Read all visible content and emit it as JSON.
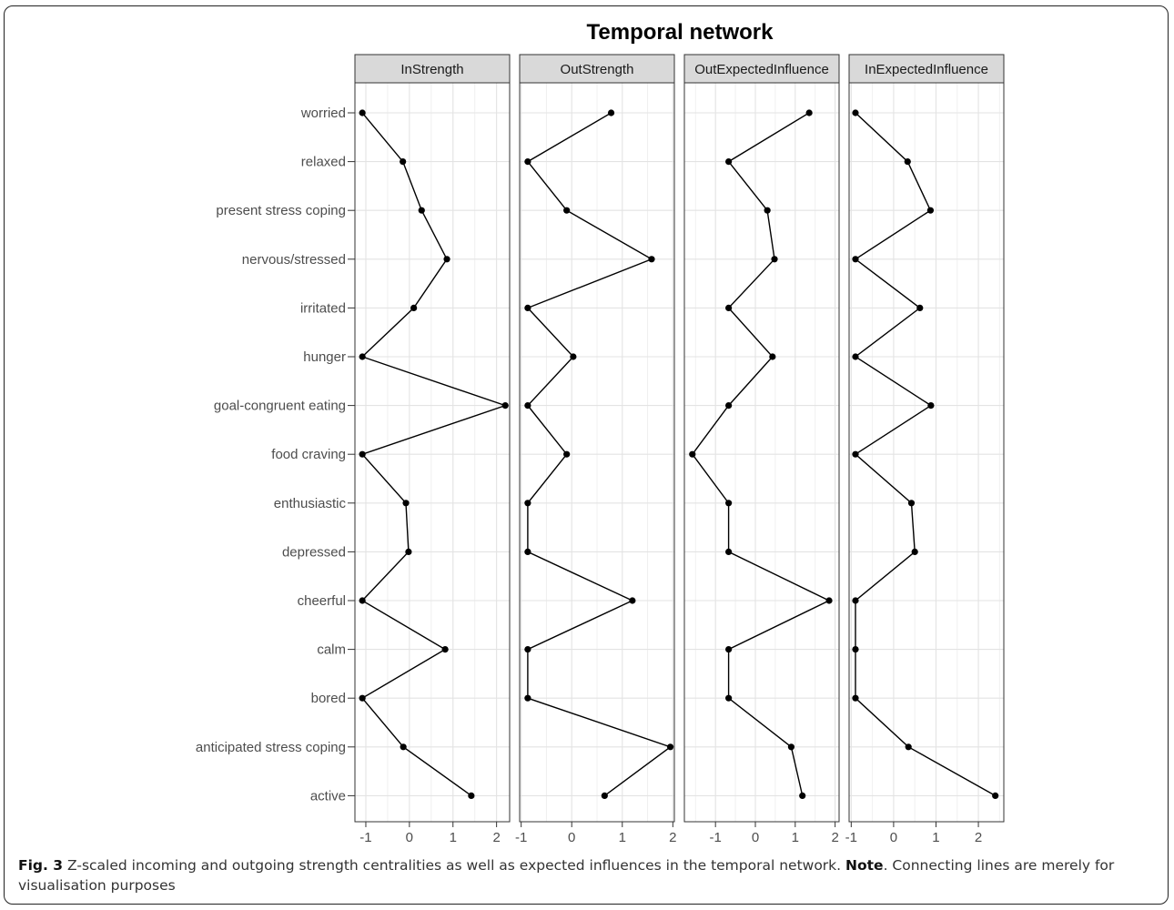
{
  "chart_data": {
    "type": "line",
    "title": "Temporal network",
    "categories": [
      "worried",
      "relaxed",
      "present stress coping",
      "nervous/stressed",
      "irritated",
      "hunger",
      "goal-congruent eating",
      "food craving",
      "enthusiastic",
      "depressed",
      "cheerful",
      "calm",
      "bored",
      "anticipated stress coping",
      "active"
    ],
    "panels": [
      {
        "name": "InStrength",
        "xlim": [
          -1.25,
          2.3
        ],
        "xticks": [
          -1,
          0,
          1,
          2
        ],
        "values": [
          -1.08,
          -0.15,
          0.28,
          0.86,
          0.1,
          -1.08,
          2.2,
          -1.08,
          -0.08,
          -0.02,
          -1.08,
          0.82,
          -1.08,
          -0.14,
          1.42
        ]
      },
      {
        "name": "OutStrength",
        "xlim": [
          -1.03,
          2.03
        ],
        "xticks": [
          -1,
          0,
          1,
          2
        ],
        "values": [
          0.78,
          -0.87,
          -0.1,
          1.58,
          -0.87,
          0.03,
          -0.87,
          -0.1,
          -0.87,
          -0.87,
          1.2,
          -0.87,
          -0.87,
          1.95,
          0.65
        ]
      },
      {
        "name": "OutExpectedInfluence",
        "xlim": [
          -1.78,
          2.1
        ],
        "xticks": [
          -1,
          0,
          1,
          2
        ],
        "values": [
          1.35,
          -0.67,
          0.3,
          0.48,
          -0.67,
          0.43,
          -0.67,
          -1.58,
          -0.67,
          -0.67,
          1.85,
          -0.67,
          -0.67,
          0.9,
          1.18
        ]
      },
      {
        "name": "InExpectedInfluence",
        "xlim": [
          -1.05,
          2.6
        ],
        "xticks": [
          -1,
          0,
          1,
          2
        ],
        "values": [
          -0.9,
          0.33,
          0.87,
          -0.9,
          0.62,
          -0.9,
          0.88,
          -0.9,
          0.42,
          0.5,
          -0.9,
          -0.9,
          -0.9,
          0.35,
          2.4
        ]
      }
    ]
  },
  "caption": {
    "label": "Fig. 3",
    "text": " Z-scaled incoming and outgoing strength centralities as well as expected influences in the temporal network. ",
    "note_label": "Note",
    "note_text": ". Connecting lines are merely for visualisation purposes"
  }
}
